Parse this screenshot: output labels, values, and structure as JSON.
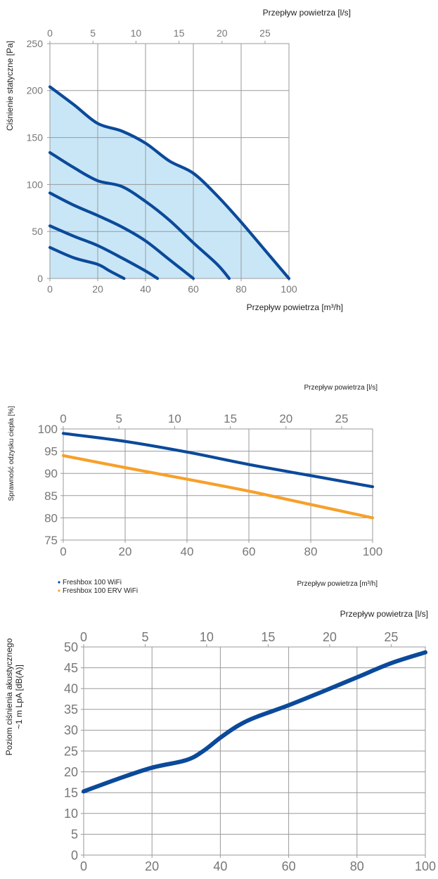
{
  "chart_data": [
    {
      "type": "line",
      "title": "",
      "x_top_label": "Przepływ powietrza [l/s]",
      "xlabel": "Przepływ powietrza [m³/h]",
      "ylabel": "Ciśnienie statyczne [Pa]",
      "xlim": [
        0,
        100
      ],
      "ylim": [
        0,
        250
      ],
      "x2lim": [
        0,
        27.78
      ],
      "x_ticks": [
        "0",
        "20",
        "40",
        "60",
        "80",
        "100"
      ],
      "x2_ticks": [
        "0",
        "5",
        "10",
        "15",
        "20",
        "25"
      ],
      "y_ticks": [
        "0",
        "50",
        "100",
        "150",
        "200",
        "250"
      ],
      "grid": true,
      "fill_color": "#c9e6f7",
      "line_color": "#0b4a9a",
      "series": [
        {
          "x": [
            0,
            10,
            20,
            30,
            40,
            50,
            60,
            70,
            80,
            90,
            100
          ],
          "y": [
            204,
            185,
            165,
            157,
            144,
            125,
            112,
            88,
            60,
            30,
            0
          ]
        },
        {
          "x": [
            0,
            10,
            20,
            30,
            40,
            50,
            60,
            70,
            75
          ],
          "y": [
            134,
            118,
            104,
            98,
            82,
            62,
            38,
            15,
            0
          ]
        },
        {
          "x": [
            0,
            10,
            20,
            30,
            40,
            50,
            60
          ],
          "y": [
            91,
            78,
            67,
            55,
            40,
            20,
            0
          ]
        },
        {
          "x": [
            0,
            10,
            20,
            30,
            40,
            45
          ],
          "y": [
            56,
            45,
            35,
            22,
            8,
            0
          ]
        },
        {
          "x": [
            0,
            10,
            20,
            25,
            31
          ],
          "y": [
            33,
            22,
            15,
            8,
            0
          ]
        }
      ]
    },
    {
      "type": "line",
      "title": "",
      "x_top_label": "Przepływ powietrza [l/s]",
      "xlabel": "Przepływ powietrza [m³/h]",
      "ylabel": "Sprawność odzysku ciepła [%]",
      "xlim": [
        0,
        100
      ],
      "ylim": [
        75,
        100
      ],
      "x2lim": [
        0,
        27.78
      ],
      "x_ticks": [
        "0",
        "20",
        "40",
        "60",
        "80",
        "100"
      ],
      "x2_ticks": [
        "0",
        "5",
        "10",
        "15",
        "20",
        "25"
      ],
      "y_ticks": [
        "75",
        "80",
        "85",
        "90",
        "95",
        "100"
      ],
      "grid": true,
      "legend_position": "bottom-left",
      "series": [
        {
          "name": "Freshbox 100 WiFi",
          "color": "#0b4a9a",
          "x": [
            0,
            20,
            40,
            60,
            80,
            100
          ],
          "y": [
            99,
            97.2,
            94.8,
            92,
            89.5,
            87
          ]
        },
        {
          "name": "Freshbox 100 ERV WiFi",
          "color": "#f7a02a",
          "x": [
            0,
            20,
            40,
            60,
            80,
            100
          ],
          "y": [
            94,
            91.3,
            88.7,
            86,
            83,
            80
          ]
        }
      ]
    },
    {
      "type": "line",
      "title": "",
      "x_top_label": "Przepływ powietrza [l/s]",
      "xlabel": "",
      "ylabel": "Poziom ciśnienia akustycznego\n~1 m LpA [dB(A)]",
      "xlim": [
        0,
        100
      ],
      "ylim": [
        0,
        50
      ],
      "x2lim": [
        0,
        27.78
      ],
      "x_ticks": [
        "0",
        "20",
        "40",
        "60",
        "80",
        "100"
      ],
      "x2_ticks": [
        "0",
        "5",
        "10",
        "15",
        "20",
        "25"
      ],
      "y_ticks": [
        "0",
        "5",
        "10",
        "15",
        "20",
        "25",
        "30",
        "35",
        "40",
        "45",
        "50"
      ],
      "grid": true,
      "series": [
        {
          "color": "#0b4a9a",
          "x": [
            0,
            10,
            20,
            30,
            35,
            40,
            45,
            50,
            60,
            70,
            80,
            90,
            100
          ],
          "y": [
            15.3,
            18.3,
            21,
            22.8,
            25,
            28.2,
            31,
            33,
            36,
            39.3,
            42.7,
            46.1,
            48.7
          ]
        }
      ]
    }
  ]
}
